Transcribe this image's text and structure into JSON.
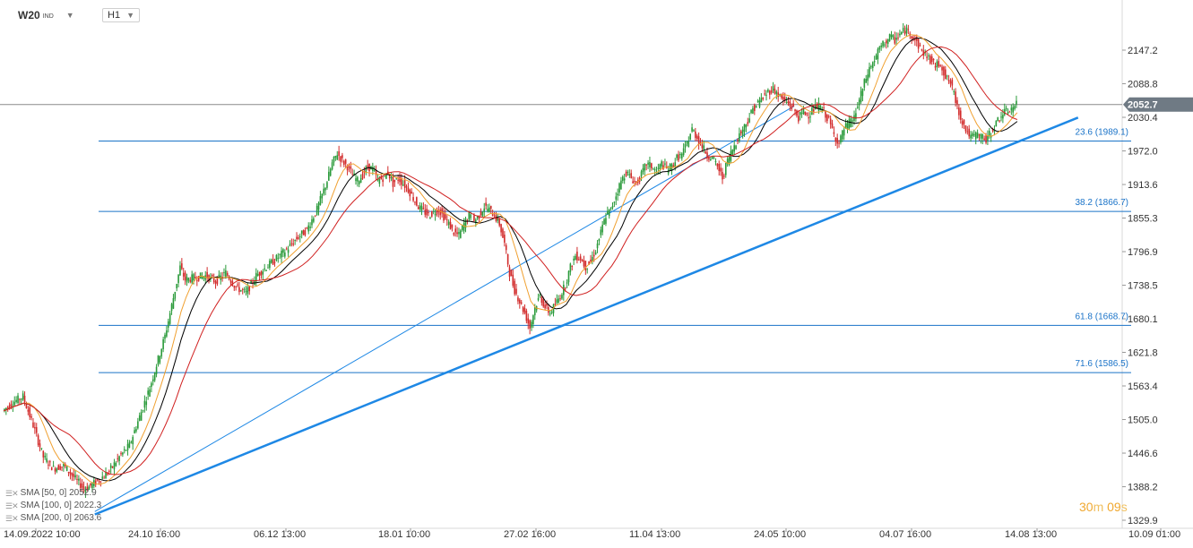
{
  "header": {
    "symbol": "W20",
    "symbol_suffix": "IND",
    "timeframe": "H1"
  },
  "timer": {
    "minutes": "30",
    "minutes_unit": "m",
    "seconds": "09",
    "seconds_unit": "s"
  },
  "legend": [
    {
      "label": "SMA [50, 0] 2052.9",
      "color": "#000000"
    },
    {
      "label": "SMA [100, 0] 2022.3",
      "color": "#f0a030"
    },
    {
      "label": "SMA [200, 0] 2063.6",
      "color": "#d02020"
    }
  ],
  "chart_data": {
    "type": "line",
    "ylim": [
      1329.9,
      2200
    ],
    "y_ticks": [
      "2147.2",
      "2088.8",
      "2030.4",
      "1972.0",
      "1913.6",
      "1855.3",
      "1796.9",
      "1738.5",
      "1680.1",
      "1621.8",
      "1563.4",
      "1505.0",
      "1446.6",
      "1388.2",
      "1329.9"
    ],
    "x_ticks": [
      "14.09.2022 10:00",
      "24.10 16:00",
      "06.12 13:00",
      "18.01 10:00",
      "27.02 16:00",
      "11.04 13:00",
      "24.05 10:00",
      "04.07 16:00",
      "14.08 13:00",
      "10.09 01:00"
    ],
    "current_price": "2052.7",
    "fib_levels": [
      {
        "label": "23.6 (1989.1)",
        "value": 1989.1
      },
      {
        "label": "38.2 (1866.7)",
        "value": 1866.7
      },
      {
        "label": "61.8 (1668.7)",
        "value": 1668.7
      },
      {
        "label": "71.6 (1586.5)",
        "value": 1586.5
      }
    ],
    "price": [
      {
        "x": 0,
        "y": 1520
      },
      {
        "x": 2,
        "y": 1535
      },
      {
        "x": 4,
        "y": 1545
      },
      {
        "x": 6,
        "y": 1495
      },
      {
        "x": 8,
        "y": 1440
      },
      {
        "x": 10,
        "y": 1420
      },
      {
        "x": 12,
        "y": 1425
      },
      {
        "x": 14,
        "y": 1405
      },
      {
        "x": 16,
        "y": 1385
      },
      {
        "x": 17,
        "y": 1388
      },
      {
        "x": 19,
        "y": 1400
      },
      {
        "x": 21,
        "y": 1415
      },
      {
        "x": 23,
        "y": 1440
      },
      {
        "x": 25,
        "y": 1460
      },
      {
        "x": 27,
        "y": 1510
      },
      {
        "x": 29,
        "y": 1560
      },
      {
        "x": 31,
        "y": 1620
      },
      {
        "x": 32,
        "y": 1650
      },
      {
        "x": 33,
        "y": 1690
      },
      {
        "x": 34,
        "y": 1730
      },
      {
        "x": 35,
        "y": 1770
      },
      {
        "x": 36,
        "y": 1748
      },
      {
        "x": 38,
        "y": 1752
      },
      {
        "x": 40,
        "y": 1755
      },
      {
        "x": 42,
        "y": 1745
      },
      {
        "x": 44,
        "y": 1760
      },
      {
        "x": 46,
        "y": 1735
      },
      {
        "x": 48,
        "y": 1725
      },
      {
        "x": 50,
        "y": 1755
      },
      {
        "x": 52,
        "y": 1770
      },
      {
        "x": 54,
        "y": 1785
      },
      {
        "x": 56,
        "y": 1800
      },
      {
        "x": 58,
        "y": 1820
      },
      {
        "x": 60,
        "y": 1835
      },
      {
        "x": 62,
        "y": 1870
      },
      {
        "x": 64,
        "y": 1920
      },
      {
        "x": 65,
        "y": 1950
      },
      {
        "x": 66,
        "y": 1968
      },
      {
        "x": 67,
        "y": 1955
      },
      {
        "x": 68,
        "y": 1945
      },
      {
        "x": 69,
        "y": 1930
      },
      {
        "x": 70,
        "y": 1920
      },
      {
        "x": 71,
        "y": 1930
      },
      {
        "x": 72,
        "y": 1945
      },
      {
        "x": 73,
        "y": 1940
      },
      {
        "x": 74,
        "y": 1920
      },
      {
        "x": 75,
        "y": 1925
      },
      {
        "x": 76,
        "y": 1935
      },
      {
        "x": 77,
        "y": 1915
      },
      {
        "x": 78,
        "y": 1925
      },
      {
        "x": 80,
        "y": 1905
      },
      {
        "x": 82,
        "y": 1875
      },
      {
        "x": 84,
        "y": 1860
      },
      {
        "x": 86,
        "y": 1870
      },
      {
        "x": 88,
        "y": 1845
      },
      {
        "x": 89,
        "y": 1830
      },
      {
        "x": 90,
        "y": 1825
      },
      {
        "x": 91,
        "y": 1845
      },
      {
        "x": 92,
        "y": 1860
      },
      {
        "x": 93,
        "y": 1850
      },
      {
        "x": 94,
        "y": 1860
      },
      {
        "x": 95,
        "y": 1875
      },
      {
        "x": 96,
        "y": 1870
      },
      {
        "x": 97,
        "y": 1860
      },
      {
        "x": 98,
        "y": 1845
      },
      {
        "x": 99,
        "y": 1810
      },
      {
        "x": 100,
        "y": 1760
      },
      {
        "x": 101,
        "y": 1730
      },
      {
        "x": 102,
        "y": 1710
      },
      {
        "x": 103,
        "y": 1690
      },
      {
        "x": 104,
        "y": 1665
      },
      {
        "x": 105,
        "y": 1700
      },
      {
        "x": 106,
        "y": 1720
      },
      {
        "x": 107,
        "y": 1700
      },
      {
        "x": 108,
        "y": 1690
      },
      {
        "x": 109,
        "y": 1705
      },
      {
        "x": 110,
        "y": 1720
      },
      {
        "x": 111,
        "y": 1740
      },
      {
        "x": 112,
        "y": 1770
      },
      {
        "x": 113,
        "y": 1790
      },
      {
        "x": 114,
        "y": 1785
      },
      {
        "x": 115,
        "y": 1770
      },
      {
        "x": 116,
        "y": 1780
      },
      {
        "x": 117,
        "y": 1800
      },
      {
        "x": 118,
        "y": 1830
      },
      {
        "x": 119,
        "y": 1860
      },
      {
        "x": 120,
        "y": 1870
      },
      {
        "x": 121,
        "y": 1895
      },
      {
        "x": 122,
        "y": 1920
      },
      {
        "x": 123,
        "y": 1935
      },
      {
        "x": 124,
        "y": 1925
      },
      {
        "x": 125,
        "y": 1915
      },
      {
        "x": 126,
        "y": 1930
      },
      {
        "x": 127,
        "y": 1950
      },
      {
        "x": 128,
        "y": 1945
      },
      {
        "x": 129,
        "y": 1935
      },
      {
        "x": 130,
        "y": 1950
      },
      {
        "x": 131,
        "y": 1940
      },
      {
        "x": 132,
        "y": 1945
      },
      {
        "x": 133,
        "y": 1960
      },
      {
        "x": 134,
        "y": 1965
      },
      {
        "x": 135,
        "y": 1985
      },
      {
        "x": 136,
        "y": 2010
      },
      {
        "x": 137,
        "y": 1995
      },
      {
        "x": 138,
        "y": 1980
      },
      {
        "x": 139,
        "y": 1965
      },
      {
        "x": 140,
        "y": 1960
      },
      {
        "x": 141,
        "y": 1945
      },
      {
        "x": 142,
        "y": 1925
      },
      {
        "x": 143,
        "y": 1955
      },
      {
        "x": 144,
        "y": 1975
      },
      {
        "x": 145,
        "y": 1995
      },
      {
        "x": 146,
        "y": 2010
      },
      {
        "x": 147,
        "y": 2025
      },
      {
        "x": 148,
        "y": 2045
      },
      {
        "x": 149,
        "y": 2055
      },
      {
        "x": 150,
        "y": 2065
      },
      {
        "x": 151,
        "y": 2075
      },
      {
        "x": 152,
        "y": 2080
      },
      {
        "x": 153,
        "y": 2070
      },
      {
        "x": 154,
        "y": 2060
      },
      {
        "x": 155,
        "y": 2055
      },
      {
        "x": 156,
        "y": 2045
      },
      {
        "x": 157,
        "y": 2030
      },
      {
        "x": 158,
        "y": 2040
      },
      {
        "x": 159,
        "y": 2035
      },
      {
        "x": 160,
        "y": 2045
      },
      {
        "x": 161,
        "y": 2050
      },
      {
        "x": 162,
        "y": 2040
      },
      {
        "x": 163,
        "y": 2025
      },
      {
        "x": 164,
        "y": 2000
      },
      {
        "x": 165,
        "y": 1985
      },
      {
        "x": 166,
        "y": 2010
      },
      {
        "x": 167,
        "y": 2020
      },
      {
        "x": 168,
        "y": 2030
      },
      {
        "x": 169,
        "y": 2060
      },
      {
        "x": 170,
        "y": 2090
      },
      {
        "x": 171,
        "y": 2115
      },
      {
        "x": 172,
        "y": 2130
      },
      {
        "x": 173,
        "y": 2150
      },
      {
        "x": 174,
        "y": 2160
      },
      {
        "x": 175,
        "y": 2170
      },
      {
        "x": 176,
        "y": 2165
      },
      {
        "x": 177,
        "y": 2175
      },
      {
        "x": 178,
        "y": 2182
      },
      {
        "x": 179,
        "y": 2178
      },
      {
        "x": 180,
        "y": 2165
      },
      {
        "x": 181,
        "y": 2150
      },
      {
        "x": 182,
        "y": 2140
      },
      {
        "x": 183,
        "y": 2130
      },
      {
        "x": 184,
        "y": 2120
      },
      {
        "x": 185,
        "y": 2125
      },
      {
        "x": 186,
        "y": 2100
      },
      {
        "x": 187,
        "y": 2090
      },
      {
        "x": 188,
        "y": 2060
      },
      {
        "x": 189,
        "y": 2030
      },
      {
        "x": 190,
        "y": 2010
      },
      {
        "x": 191,
        "y": 1995
      },
      {
        "x": 192,
        "y": 2000
      },
      {
        "x": 193,
        "y": 1998
      },
      {
        "x": 194,
        "y": 1990
      },
      {
        "x": 195,
        "y": 2005
      },
      {
        "x": 196,
        "y": 2020
      },
      {
        "x": 197,
        "y": 2035
      },
      {
        "x": 198,
        "y": 2040
      },
      {
        "x": 199,
        "y": 2045
      },
      {
        "x": 200,
        "y": 2052.7
      }
    ],
    "series": [
      {
        "name": "SMA [50, 0] 2052.9",
        "color": "#000000",
        "period": 8
      },
      {
        "name": "SMA [100, 0] 2022.3",
        "color": "#f0a030",
        "period": 5
      },
      {
        "name": "SMA [200, 0] 2063.6",
        "color": "#d02020",
        "period": 14
      }
    ],
    "trendlines": [
      {
        "from": [
          18,
          1340
        ],
        "to": [
          212,
          2030
        ],
        "width": 2.5
      },
      {
        "from": [
          18,
          1345
        ],
        "to": [
          156,
          2050
        ],
        "width": 1
      }
    ]
  }
}
